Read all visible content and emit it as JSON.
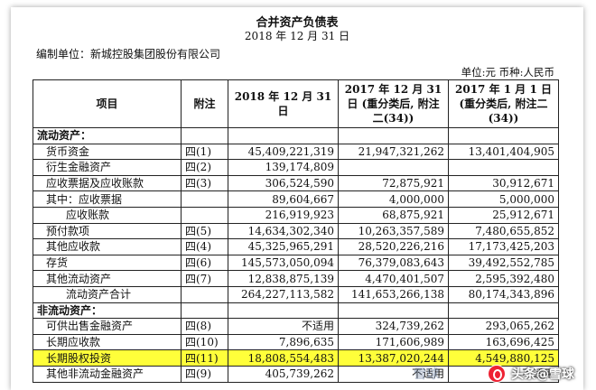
{
  "document": {
    "title": "合并资产负债表",
    "date": "2018 年 12 月 31 日",
    "prepared_by": "编制单位：新城控股集团股份有限公司",
    "currency_note": "单位:元  币种:人民币"
  },
  "table": {
    "headers": {
      "item": "项目",
      "note": "附注",
      "col1": "2018 年 12 月 31 日",
      "col2": "2017 年 12 月 31 日 (重分类后, 附注二(34))",
      "col3": "2017 年 1 月 1 日 (重分类后, 附注二(34))"
    },
    "rows": [
      {
        "item": "流动资产：",
        "note": "",
        "v1": "",
        "v2": "",
        "v3": ""
      },
      {
        "item": "货币资金",
        "note": "四(1)",
        "v1": "45,409,221,319",
        "v2": "21,947,321,262",
        "v3": "13,401,404,905"
      },
      {
        "item": "衍生金融资产",
        "note": "四(2)",
        "v1": "139,174,809",
        "v2": "",
        "v3": ""
      },
      {
        "item": "应收票据及应收账款",
        "note": "四(3)",
        "v1": "306,524,590",
        "v2": "72,875,921",
        "v3": "30,912,671"
      },
      {
        "item": "其中：应收票据",
        "note": "",
        "v1": "89,604,667",
        "v2": "4,000,000",
        "v3": "5,000,000"
      },
      {
        "item": "应收账款",
        "note": "",
        "v1": "216,919,923",
        "v2": "68,875,921",
        "v3": "25,912,671"
      },
      {
        "item": "预付款项",
        "note": "四(5)",
        "v1": "14,634,302,340",
        "v2": "10,263,357,589",
        "v3": "7,480,655,852"
      },
      {
        "item": "其他应收款",
        "note": "四(4)",
        "v1": "45,325,965,291",
        "v2": "28,520,226,216",
        "v3": "17,173,425,203"
      },
      {
        "item": "存货",
        "note": "四(6)",
        "v1": "145,573,050,094",
        "v2": "76,379,083,643",
        "v3": "39,492,552,785"
      },
      {
        "item": "其他流动资产",
        "note": "四(7)",
        "v1": "12,838,875,139",
        "v2": "4,470,401,507",
        "v3": "2,595,392,480"
      },
      {
        "item": "流动资产合计",
        "note": "",
        "v1": "264,227,113,582",
        "v2": "141,653,266,138",
        "v3": "80,174,343,896"
      },
      {
        "item": "非流动资产：",
        "note": "",
        "v1": "",
        "v2": "",
        "v3": ""
      },
      {
        "item": "可供出售金融资产",
        "note": "四(8)",
        "v1": "不适用",
        "v2": "324,739,262",
        "v3": "293,065,262"
      },
      {
        "item": "长期应收款",
        "note": "四(10)",
        "v1": "7,896,635",
        "v2": "171,606,989",
        "v3": "163,696,425"
      },
      {
        "item": "长期股权投资",
        "note": "四(11)",
        "v1": "18,808,554,483",
        "v2": "13,387,020,244",
        "v3": "4,549,880,125"
      },
      {
        "item": "其他非流动金融资产",
        "note": "四(9)",
        "v1": "405,739,262",
        "v2": "不适用",
        "v3": "不适用"
      }
    ]
  },
  "watermark": {
    "faint_text": "雪球",
    "text": "头条@雪球"
  },
  "colors": {
    "highlight": "#ffff3a"
  }
}
